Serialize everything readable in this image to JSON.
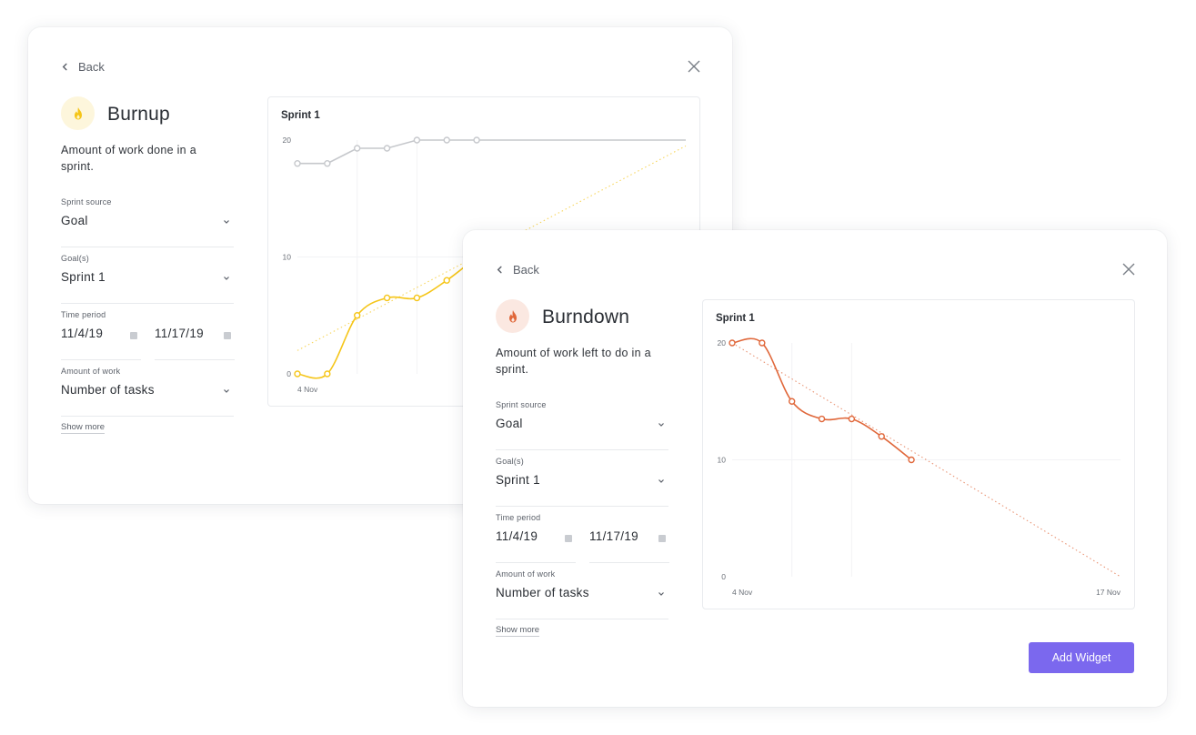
{
  "burnup": {
    "back_label": "Back",
    "title": "Burnup",
    "description": "Amount of work done in a sprint.",
    "icon": "fire-icon",
    "accent": "#f5c518",
    "fields": {
      "sprint_source_label": "Sprint source",
      "sprint_source_value": "Goal",
      "goals_label": "Goal(s)",
      "goals_value": "Sprint 1",
      "time_period_label": "Time period",
      "start_date": "11/4/19",
      "end_date": "11/17/19",
      "amount_label": "Amount of work",
      "amount_value": "Number of tasks"
    },
    "show_more": "Show more"
  },
  "burndown": {
    "back_label": "Back",
    "title": "Burndown",
    "description": "Amount of work left to do in a sprint.",
    "icon": "fire-icon",
    "accent": "#e0673a",
    "fields": {
      "sprint_source_label": "Sprint source",
      "sprint_source_value": "Goal",
      "goals_label": "Goal(s)",
      "goals_value": "Sprint 1",
      "time_period_label": "Time period",
      "start_date": "11/4/19",
      "end_date": "11/17/19",
      "amount_label": "Amount of work",
      "amount_value": "Number of tasks"
    },
    "show_more": "Show more",
    "add_widget_label": "Add Widget"
  },
  "chart_data": [
    {
      "type": "line",
      "title": "Sprint 1",
      "xlabel": "",
      "ylabel": "",
      "x_ticks": [
        "4 Nov"
      ],
      "y_ticks": [
        0,
        10,
        20
      ],
      "ylim": [
        0,
        20
      ],
      "x_range_days": [
        0,
        13
      ],
      "series": [
        {
          "color": "#c6c8cc",
          "points": [
            [
              0,
              18
            ],
            [
              1,
              18
            ],
            [
              2,
              19.3
            ],
            [
              3,
              19.3
            ],
            [
              4,
              20
            ],
            [
              5,
              20
            ],
            [
              6,
              20
            ]
          ],
          "extend_to": 13
        },
        {
          "color": "#f5c518",
          "points": [
            [
              0,
              0
            ],
            [
              1,
              0
            ],
            [
              2,
              5
            ],
            [
              3,
              6.5
            ],
            [
              4,
              6.5
            ],
            [
              5,
              8
            ],
            [
              6,
              10
            ]
          ]
        }
      ],
      "ideal": {
        "color": "#f5c518",
        "from": [
          0,
          2
        ],
        "to": [
          13,
          19.5
        ]
      }
    },
    {
      "type": "line",
      "title": "Sprint 1",
      "xlabel": "",
      "ylabel": "",
      "x_ticks": [
        "4 Nov",
        "17 Nov"
      ],
      "y_ticks": [
        0,
        10,
        20
      ],
      "ylim": [
        0,
        20
      ],
      "x_range_days": [
        0,
        13
      ],
      "series": [
        {
          "color": "#e0673a",
          "points": [
            [
              0,
              20
            ],
            [
              1,
              20
            ],
            [
              2,
              15
            ],
            [
              3,
              13.5
            ],
            [
              4,
              13.5
            ],
            [
              5,
              12
            ],
            [
              6,
              10
            ]
          ]
        }
      ],
      "ideal": {
        "color": "#e0673a",
        "from": [
          0,
          20
        ],
        "to": [
          13,
          0
        ]
      }
    }
  ]
}
